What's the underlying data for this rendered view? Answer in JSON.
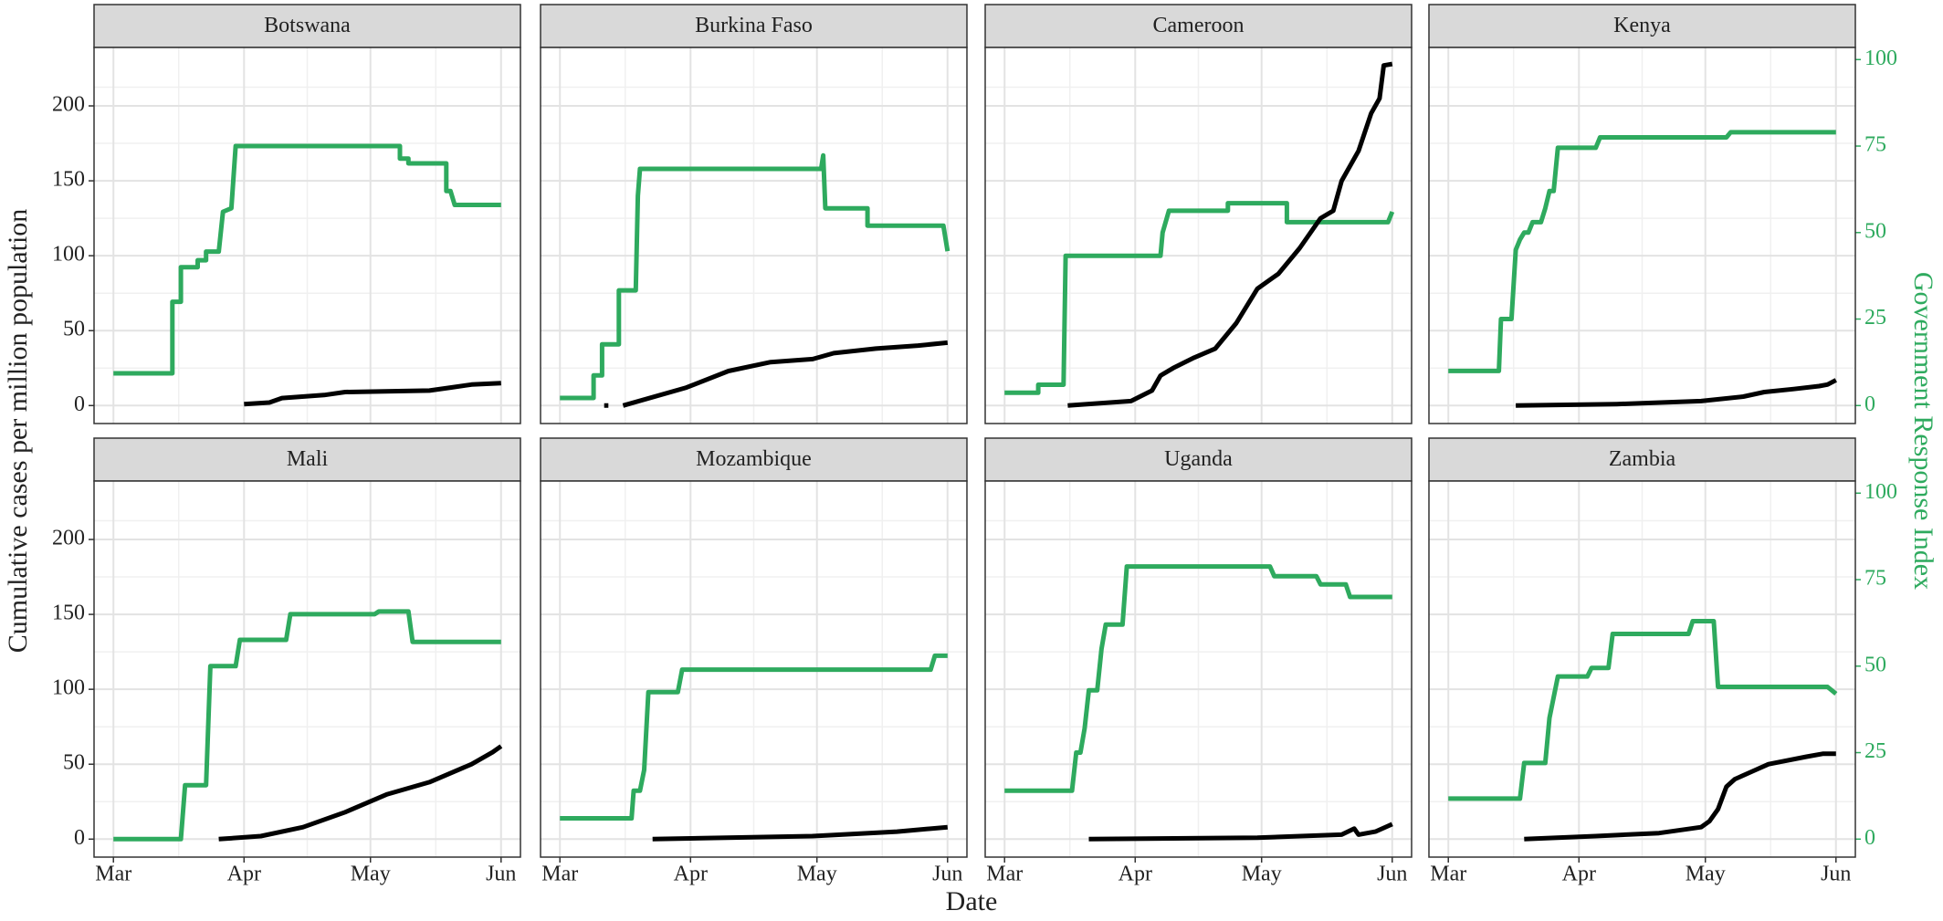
{
  "chart_data": {
    "type": "line",
    "xlabel": "Date",
    "ylabel": "Cumulative cases per million population",
    "y2label": "Government Response Index",
    "xlim": [
      -4.6,
      96.6
    ],
    "xticks": [
      {
        "value": 0,
        "label": "Mar"
      },
      {
        "value": 31,
        "label": "Apr"
      },
      {
        "value": 61,
        "label": "May"
      },
      {
        "value": 92,
        "label": "Jun"
      }
    ],
    "ylim": [
      -12,
      239
    ],
    "yticks": [
      0,
      50,
      100,
      150,
      200
    ],
    "y2lim": [
      -5.2,
      103.5
    ],
    "y2ticks": [
      0,
      25,
      50,
      75,
      100
    ],
    "grid": true,
    "panels": [
      {
        "title": "Botswana",
        "series": [
          {
            "color": "#2eaa5e",
            "axis": "y2",
            "x": [
              0,
              14,
              14,
              16,
              16,
              20,
              20,
              22,
              22,
              25,
              26,
              28,
              29,
              68,
              68,
              70,
              70,
              79,
              79,
              80,
              81,
              92
            ],
            "values": [
              9.3,
              9.3,
              30,
              30,
              40,
              40,
              42,
              42,
              44.5,
              44.5,
              56,
              57,
              75,
              75,
              71.4,
              71.4,
              70,
              70,
              62,
              62,
              58,
              58
            ]
          },
          {
            "color": "#000000",
            "x": [
              31,
              37,
              40,
              50,
              55,
              75,
              80,
              85,
              92
            ],
            "values": [
              1,
              2,
              5,
              7,
              9,
              10,
              12,
              14,
              15
            ]
          }
        ]
      },
      {
        "title": "Burkina Faso",
        "series": [
          {
            "color": "#2eaa5e",
            "axis": "y2",
            "x": [
              0,
              8,
              8,
              10,
              10,
              14,
              14,
              18,
              18.5,
              19,
              61,
              62,
              62.5,
              63,
              73,
              73,
              91,
              92
            ],
            "values": [
              2.2,
              2.2,
              8.7,
              8.7,
              17.7,
              17.7,
              33.3,
              33.3,
              60.6,
              68.4,
              68.4,
              68.4,
              72.3,
              57,
              57,
              52,
              52,
              44.6
            ]
          },
          {
            "color": "#000000",
            "x": [
              10.5,
              11.5,
              13,
              15,
              30,
              40,
              50,
              60,
              65,
              75,
              85,
              92
            ],
            "values": [
              0,
              0,
              null,
              0,
              12,
              23,
              29,
              31,
              35,
              38,
              40,
              42
            ]
          }
        ]
      },
      {
        "title": "Cameroon",
        "series": [
          {
            "color": "#2eaa5e",
            "axis": "y2",
            "x": [
              0,
              8,
              8,
              14,
              14.5,
              37,
              37.5,
              39,
              53,
              53,
              67,
              67,
              91,
              92
            ],
            "values": [
              3.7,
              3.7,
              6,
              6,
              43.3,
              43.3,
              50,
              56.3,
              56.3,
              58.5,
              58.5,
              53,
              53,
              56
            ]
          },
          {
            "color": "#000000",
            "x": [
              15,
              30,
              35,
              37,
              40,
              45,
              50,
              55,
              60,
              65,
              70,
              75,
              78,
              80,
              84,
              87,
              89,
              90,
              92
            ],
            "values": [
              0,
              3,
              10,
              20,
              25,
              32,
              38,
              55,
              78,
              88,
              105,
              125,
              130,
              150,
              170,
              195,
              205,
              227,
              228
            ]
          }
        ]
      },
      {
        "title": "Kenya",
        "series": [
          {
            "color": "#2eaa5e",
            "axis": "y2",
            "x": [
              0,
              12,
              12.5,
              15,
              16,
              17,
              18,
              19,
              20,
              22,
              23,
              24,
              25,
              26,
              35,
              36,
              66,
              67,
              92
            ],
            "values": [
              10,
              10,
              25,
              25,
              45,
              48,
              50,
              50,
              53,
              53,
              57,
              62,
              62,
              74.5,
              74.5,
              77.5,
              77.5,
              79,
              79
            ]
          },
          {
            "color": "#000000",
            "x": [
              16,
              40,
              60,
              70,
              75,
              82,
              88,
              90,
              92
            ],
            "values": [
              0,
              1,
              3,
              6,
              9,
              11,
              13,
              14,
              17
            ]
          }
        ]
      },
      {
        "title": "Mali",
        "series": [
          {
            "color": "#2eaa5e",
            "axis": "y2",
            "x": [
              0,
              16,
              17,
              22,
              23,
              29,
              30,
              41,
              42,
              62,
              63,
              70,
              71,
              92
            ],
            "values": [
              0,
              0,
              15.6,
              15.6,
              50,
              50,
              57.6,
              57.6,
              65,
              65,
              65.8,
              65.8,
              57,
              57
            ]
          },
          {
            "color": "#000000",
            "x": [
              25,
              35,
              45,
              55,
              65,
              75,
              85,
              90,
              92
            ],
            "values": [
              0,
              2,
              8,
              18,
              30,
              38,
              50,
              58,
              62
            ]
          }
        ]
      },
      {
        "title": "Mozambique",
        "series": [
          {
            "color": "#2eaa5e",
            "axis": "y2",
            "x": [
              0,
              17,
              17.5,
              19,
              20,
              21,
              28,
              29,
              88,
              89,
              92
            ],
            "values": [
              6,
              6,
              14,
              14,
              20,
              42.5,
              42.5,
              49,
              49,
              53,
              53
            ]
          },
          {
            "color": "#000000",
            "x": [
              22,
              60,
              80,
              92
            ],
            "values": [
              0,
              2,
              5,
              8
            ]
          }
        ]
      },
      {
        "title": "Uganda",
        "series": [
          {
            "color": "#2eaa5e",
            "axis": "y2",
            "x": [
              0,
              16,
              17,
              18,
              19,
              20,
              22,
              23,
              24,
              28,
              29,
              63,
              64,
              74,
              75,
              81,
              82,
              92
            ],
            "values": [
              14,
              14,
              25,
              25,
              32,
              43,
              43,
              55,
              62,
              62,
              78.8,
              78.8,
              76,
              76,
              73.6,
              73.6,
              70,
              70
            ]
          },
          {
            "color": "#000000",
            "x": [
              20,
              60,
              80,
              83,
              84,
              88,
              92
            ],
            "values": [
              0,
              1,
              3,
              7,
              3,
              5,
              10
            ]
          }
        ]
      },
      {
        "title": "Zambia",
        "series": [
          {
            "color": "#2eaa5e",
            "axis": "y2",
            "x": [
              0,
              17,
              18,
              23,
              24,
              26,
              33,
              34,
              38,
              39,
              57,
              58,
              63,
              64,
              90,
              92
            ],
            "values": [
              11.7,
              11.7,
              22,
              22,
              35,
              47,
              47,
              49.5,
              49.5,
              59.3,
              59.3,
              63,
              63,
              44,
              44,
              42
            ]
          },
          {
            "color": "#000000",
            "x": [
              18,
              35,
              50,
              60,
              62,
              64,
              66,
              68,
              72,
              76,
              85,
              89,
              92
            ],
            "values": [
              0,
              2,
              4,
              8,
              12,
              20,
              35,
              40,
              45,
              50,
              55,
              57,
              57
            ]
          }
        ]
      }
    ]
  }
}
